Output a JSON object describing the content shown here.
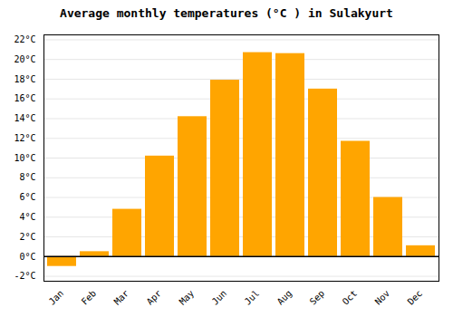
{
  "chart_data": {
    "type": "bar",
    "title": "Average monthly temperatures (°C ) in Sulakyurt",
    "categories": [
      "Jan",
      "Feb",
      "Mar",
      "Apr",
      "May",
      "Jun",
      "Jul",
      "Aug",
      "Sep",
      "Oct",
      "Nov",
      "Dec"
    ],
    "values": [
      -1.0,
      0.5,
      4.8,
      10.2,
      14.2,
      17.9,
      20.7,
      20.6,
      17.0,
      11.7,
      6.0,
      1.1
    ],
    "color": "#FFA500",
    "ylim": [
      -2.5,
      22.5
    ],
    "yticks": [
      {
        "value": -2,
        "label": "-2°C"
      },
      {
        "value": 0,
        "label": "0°C"
      },
      {
        "value": 2,
        "label": "2°C"
      },
      {
        "value": 4,
        "label": "4°C"
      },
      {
        "value": 6,
        "label": "6°C"
      },
      {
        "value": 8,
        "label": "8°C"
      },
      {
        "value": 10,
        "label": "10°C"
      },
      {
        "value": 12,
        "label": "12°C"
      },
      {
        "value": 14,
        "label": "14°C"
      },
      {
        "value": 16,
        "label": "16°C"
      },
      {
        "value": 18,
        "label": "18°C"
      },
      {
        "value": 20,
        "label": "20°C"
      },
      {
        "value": 22,
        "label": "22°C"
      }
    ],
    "grid": true
  }
}
